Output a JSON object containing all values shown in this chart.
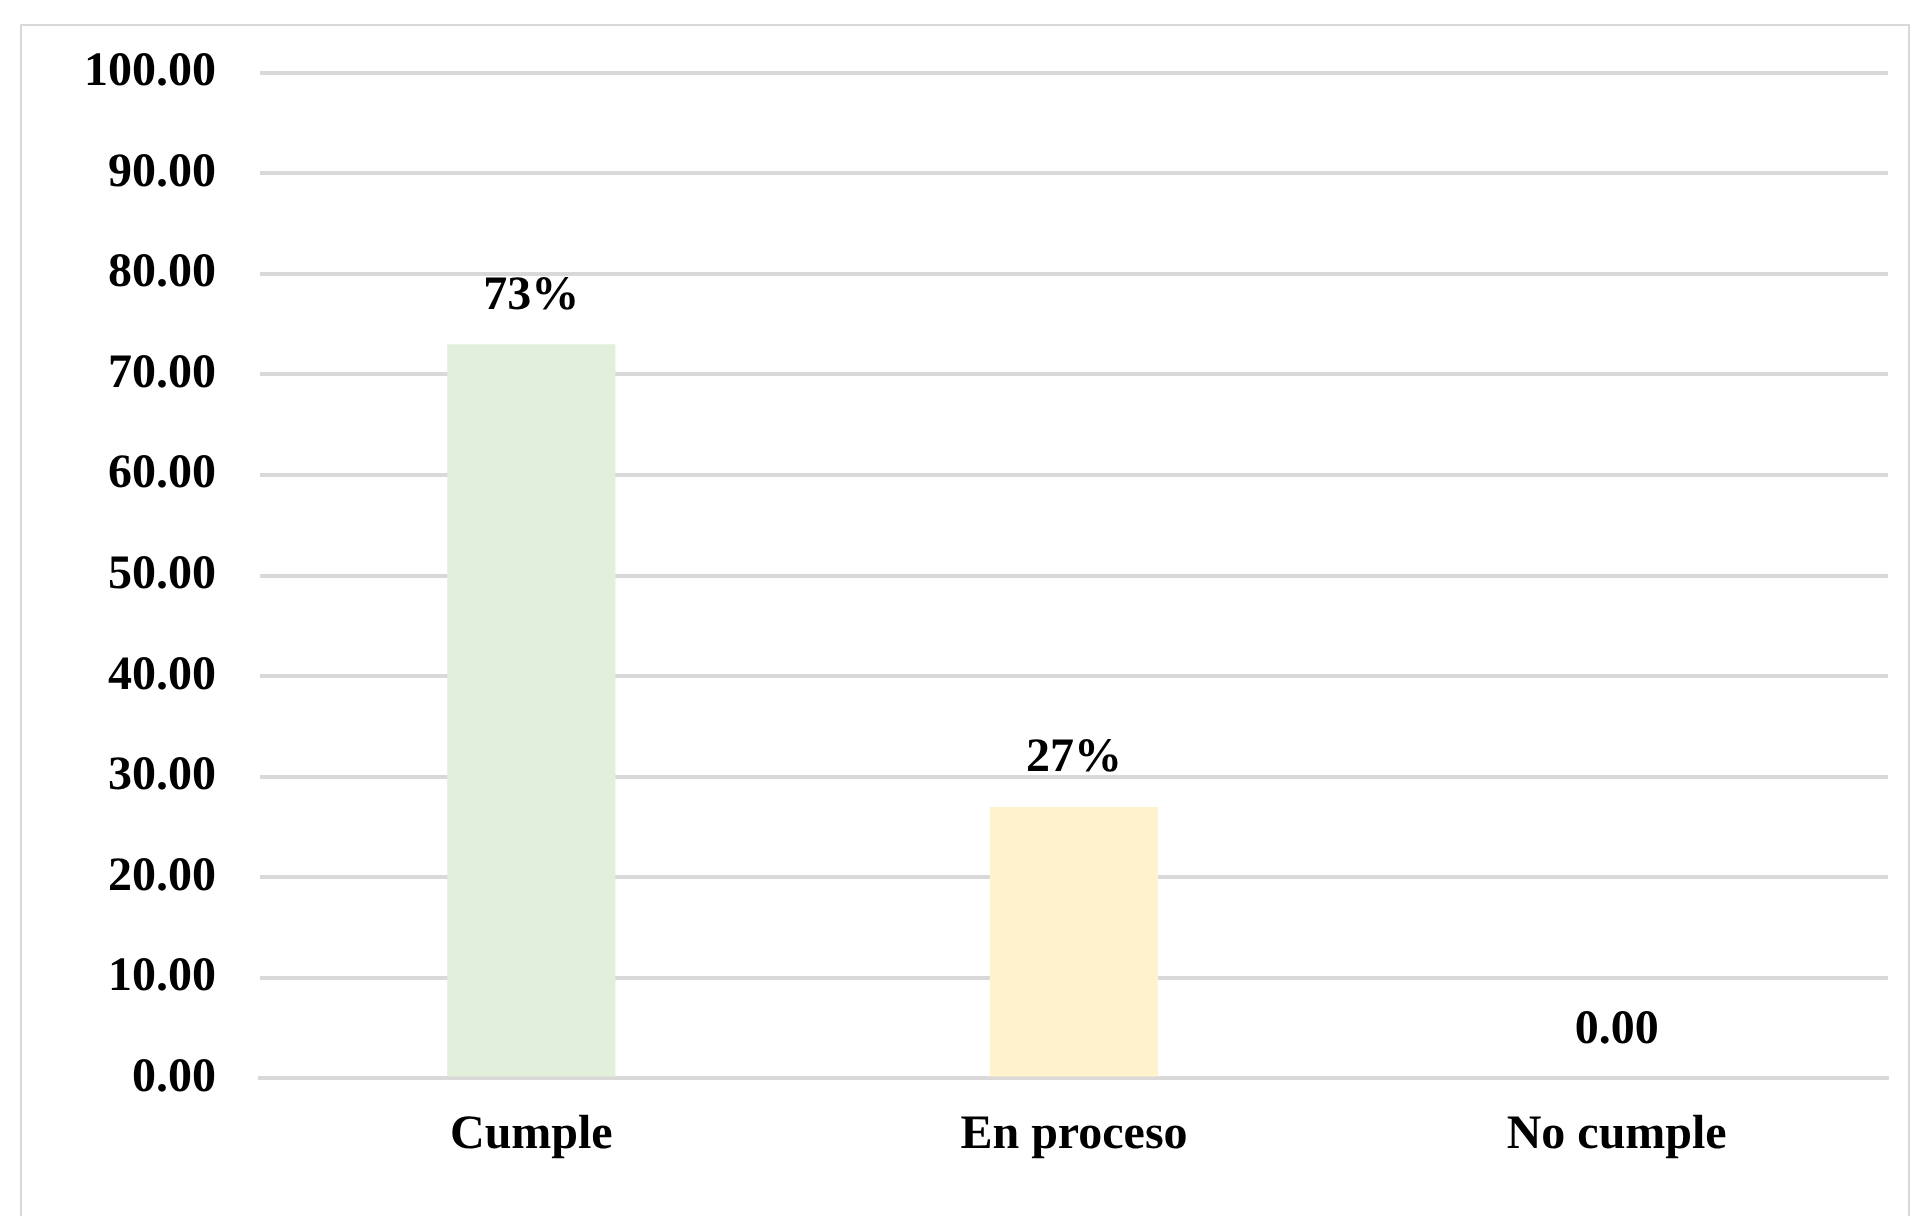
{
  "chart_data": {
    "type": "bar",
    "categories": [
      "Cumple",
      "En proceso",
      "No cumple"
    ],
    "values": [
      73,
      27,
      0
    ],
    "colors": [
      "#e2efda",
      "#fff2cc",
      "#e2efda"
    ],
    "value_labels": [
      "73%",
      "27%",
      "0.00"
    ],
    "ylim": [
      0,
      100
    ],
    "yticks": [
      {
        "value": 0,
        "label": "0.00"
      },
      {
        "value": 10,
        "label": "10.00"
      },
      {
        "value": 20,
        "label": "20.00"
      },
      {
        "value": 30,
        "label": "30.00"
      },
      {
        "value": 40,
        "label": "40.00"
      },
      {
        "value": 50,
        "label": "50.00"
      },
      {
        "value": 60,
        "label": "60.00"
      },
      {
        "value": 70,
        "label": "70.00"
      },
      {
        "value": 80,
        "label": "80.00"
      },
      {
        "value": 90,
        "label": "90.00"
      },
      {
        "value": 100,
        "label": "100.00"
      }
    ],
    "grid": "y",
    "legend": false
  }
}
